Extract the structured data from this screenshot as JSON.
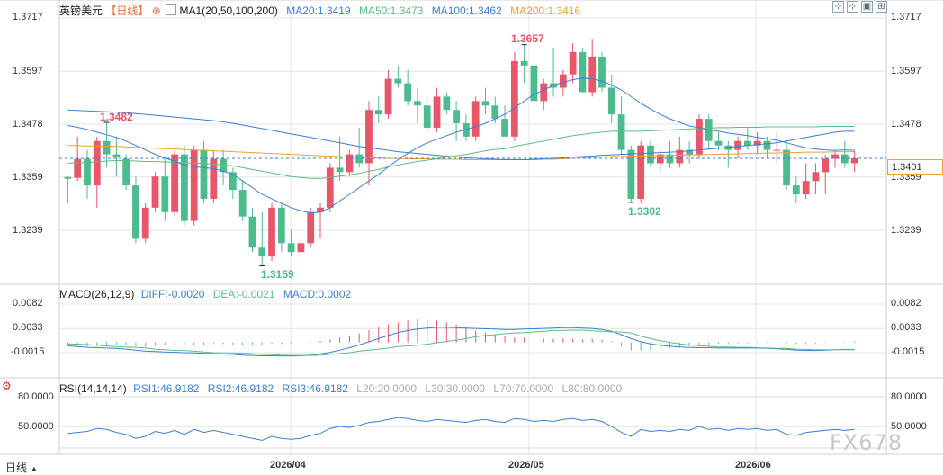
{
  "header": {
    "symbol": "英镑美元",
    "period": "【日线】",
    "ma_main": "MA1(20,50,100,200)",
    "ma20": "MA20:1.3419",
    "ma50": "MA50:1.3473",
    "ma100": "MA100:1.3462",
    "ma200": "MA200:1.3416"
  },
  "macd_header": {
    "title": "MACD(26,12,9)",
    "diff": "DIFF:-0.0020",
    "dea": "DEA:-0.0021",
    "macd": "MACD:0.0002"
  },
  "rsi_header": {
    "title": "RSI(14,14,14)",
    "rsi1": "RSI1:46.9182",
    "rsi2": "RSI2:46.9182",
    "rsi3": "RSI3:46.9182",
    "l20": "L20:20.0000",
    "l30": "L30:30.0000",
    "l70": "L70:70.0000",
    "l80": "L80:80.0000"
  },
  "footer": {
    "period_label": "日线"
  },
  "watermark": "FX678",
  "current_price_label": "1.3401",
  "annotations": {
    "high1": "1.3482",
    "high2": "1.3657",
    "low1": "1.3159",
    "low2": "1.3302"
  },
  "price_axis_left": [
    "1.3717",
    "1.3597",
    "1.3478",
    "1.3359",
    "1.3239"
  ],
  "price_axis_right": [
    "1.3717",
    "1.3597",
    "1.3478",
    "1.3359",
    "1.3239"
  ],
  "macd_axis": [
    "0.0082",
    "0.0033",
    "-0.0015"
  ],
  "rsi_axis": [
    "80.0000",
    "50.0000"
  ],
  "date_labels": [
    "2026/04",
    "2026/05",
    "2026/06"
  ],
  "colors": {
    "up": "#e8566a",
    "down": "#4cbc8e",
    "ma20": "#3a7fd5",
    "ma50": "#5bbf80",
    "ma100": "#3a7fd5",
    "ma200": "#f0a030",
    "grid": "#e4e4e4"
  },
  "chart_data": [
    {
      "type": "candlestick",
      "title": "英镑美元 日线",
      "ylim": [
        1.313,
        1.374
      ],
      "ticks": [
        1.3717,
        1.3597,
        1.3478,
        1.3359,
        1.3239
      ],
      "current_price": 1.3401,
      "candles": [
        [
          1.3359,
          1.3361,
          1.33,
          1.3355
        ],
        [
          1.3357,
          1.345,
          1.335,
          1.34
        ],
        [
          1.34,
          1.342,
          1.331,
          1.334
        ],
        [
          1.334,
          1.345,
          1.329,
          1.344
        ],
        [
          1.344,
          1.3482,
          1.338,
          1.341
        ],
        [
          1.341,
          1.345,
          1.336,
          1.3405
        ],
        [
          1.34,
          1.341,
          1.333,
          1.334
        ],
        [
          1.334,
          1.336,
          1.321,
          1.322
        ],
        [
          1.322,
          1.33,
          1.321,
          1.329
        ],
        [
          1.329,
          1.337,
          1.328,
          1.336
        ],
        [
          1.336,
          1.34,
          1.326,
          1.328
        ],
        [
          1.328,
          1.342,
          1.327,
          1.341
        ],
        [
          1.341,
          1.343,
          1.325,
          1.326
        ],
        [
          1.326,
          1.343,
          1.325,
          1.342
        ],
        [
          1.342,
          1.344,
          1.33,
          1.331
        ],
        [
          1.331,
          1.342,
          1.33,
          1.34
        ],
        [
          1.34,
          1.342,
          1.334,
          1.337
        ],
        [
          1.337,
          1.338,
          1.331,
          1.333
        ],
        [
          1.333,
          1.335,
          1.326,
          1.327
        ],
        [
          1.327,
          1.329,
          1.319,
          1.32
        ],
        [
          1.32,
          1.328,
          1.3159,
          1.318
        ],
        [
          1.318,
          1.33,
          1.317,
          1.329
        ],
        [
          1.329,
          1.33,
          1.319,
          1.321
        ],
        [
          1.321,
          1.324,
          1.318,
          1.319
        ],
        [
          1.319,
          1.322,
          1.317,
          1.321
        ],
        [
          1.321,
          1.329,
          1.32,
          1.328
        ],
        [
          1.328,
          1.33,
          1.322,
          1.329
        ],
        [
          1.329,
          1.339,
          1.328,
          1.338
        ],
        [
          1.338,
          1.345,
          1.335,
          1.337
        ],
        [
          1.337,
          1.342,
          1.336,
          1.341
        ],
        [
          1.341,
          1.347,
          1.338,
          1.339
        ],
        [
          1.339,
          1.353,
          1.334,
          1.351
        ],
        [
          1.351,
          1.354,
          1.348,
          1.35
        ],
        [
          1.35,
          1.36,
          1.349,
          1.358
        ],
        [
          1.358,
          1.361,
          1.356,
          1.357
        ],
        [
          1.357,
          1.36,
          1.352,
          1.353
        ],
        [
          1.353,
          1.356,
          1.348,
          1.352
        ],
        [
          1.352,
          1.354,
          1.346,
          1.347
        ],
        [
          1.347,
          1.356,
          1.346,
          1.354
        ],
        [
          1.354,
          1.355,
          1.35,
          1.351
        ],
        [
          1.351,
          1.353,
          1.344,
          1.348
        ],
        [
          1.348,
          1.35,
          1.344,
          1.345
        ],
        [
          1.345,
          1.354,
          1.344,
          1.353
        ],
        [
          1.353,
          1.356,
          1.35,
          1.352
        ],
        [
          1.352,
          1.354,
          1.348,
          1.349
        ],
        [
          1.349,
          1.352,
          1.345,
          1.345
        ],
        [
          1.345,
          1.364,
          1.344,
          1.362
        ],
        [
          1.362,
          1.3657,
          1.357,
          1.361
        ],
        [
          1.361,
          1.362,
          1.352,
          1.353
        ],
        [
          1.353,
          1.358,
          1.351,
          1.357
        ],
        [
          1.357,
          1.365,
          1.354,
          1.356
        ],
        [
          1.356,
          1.36,
          1.354,
          1.359
        ],
        [
          1.359,
          1.366,
          1.357,
          1.364
        ],
        [
          1.364,
          1.365,
          1.355,
          1.355
        ],
        [
          1.355,
          1.367,
          1.354,
          1.363
        ],
        [
          1.363,
          1.364,
          1.355,
          1.356
        ],
        [
          1.356,
          1.359,
          1.348,
          1.35
        ],
        [
          1.35,
          1.354,
          1.341,
          1.342
        ],
        [
          1.342,
          1.343,
          1.3302,
          1.331
        ],
        [
          1.331,
          1.344,
          1.33,
          1.343
        ],
        [
          1.343,
          1.344,
          1.338,
          1.339
        ],
        [
          1.339,
          1.342,
          1.337,
          1.341
        ],
        [
          1.341,
          1.344,
          1.338,
          1.339
        ],
        [
          1.339,
          1.345,
          1.338,
          1.342
        ],
        [
          1.342,
          1.344,
          1.339,
          1.341
        ],
        [
          1.341,
          1.35,
          1.34,
          1.349
        ],
        [
          1.349,
          1.35,
          1.342,
          1.344
        ],
        [
          1.344,
          1.346,
          1.342,
          1.343
        ],
        [
          1.343,
          1.344,
          1.338,
          1.342
        ],
        [
          1.342,
          1.345,
          1.34,
          1.344
        ],
        [
          1.344,
          1.347,
          1.342,
          1.343
        ],
        [
          1.343,
          1.346,
          1.341,
          1.344
        ],
        [
          1.344,
          1.345,
          1.34,
          1.342
        ],
        [
          1.342,
          1.346,
          1.339,
          1.342
        ],
        [
          1.342,
          1.344,
          1.333,
          1.334
        ],
        [
          1.334,
          1.336,
          1.33,
          1.332
        ],
        [
          1.332,
          1.339,
          1.331,
          1.335
        ],
        [
          1.335,
          1.339,
          1.332,
          1.337
        ],
        [
          1.337,
          1.341,
          1.332,
          1.34
        ],
        [
          1.34,
          1.342,
          1.338,
          1.341
        ],
        [
          1.341,
          1.344,
          1.338,
          1.339
        ],
        [
          1.339,
          1.342,
          1.337,
          1.3401
        ]
      ],
      "ma20": [
        1.3475,
        1.3471,
        1.3466,
        1.346,
        1.3454,
        1.3448,
        1.344,
        1.343,
        1.342,
        1.341,
        1.3402,
        1.3394,
        1.3386,
        1.3382,
        1.338,
        1.3378,
        1.3372,
        1.3365,
        1.335,
        1.3335,
        1.332,
        1.331,
        1.33,
        1.329,
        1.3283,
        1.3278,
        1.328,
        1.329,
        1.3305,
        1.332,
        1.3335,
        1.335,
        1.3365,
        1.3382,
        1.3398,
        1.3412,
        1.3425,
        1.3436,
        1.3444,
        1.3452,
        1.346,
        1.3466,
        1.3472,
        1.348,
        1.349,
        1.35,
        1.3515,
        1.353,
        1.3545,
        1.3555,
        1.3565,
        1.3572,
        1.3578,
        1.3582,
        1.358,
        1.3575,
        1.3566,
        1.3555,
        1.354,
        1.3525,
        1.3512,
        1.35,
        1.349,
        1.3482,
        1.3474,
        1.347,
        1.3465,
        1.3462,
        1.3458,
        1.3455,
        1.3452,
        1.3448,
        1.3445,
        1.3442,
        1.3436,
        1.343,
        1.3425,
        1.3422,
        1.342,
        1.3419,
        1.342,
        1.3419
      ],
      "ma50": [
        1.339,
        1.3391,
        1.3392,
        1.3393,
        1.3395,
        1.3396,
        1.3396,
        1.3395,
        1.3394,
        1.3394,
        1.3393,
        1.3392,
        1.3391,
        1.339,
        1.3389,
        1.3388,
        1.3386,
        1.3384,
        1.338,
        1.3376,
        1.3372,
        1.3368,
        1.3364,
        1.336,
        1.3358,
        1.3356,
        1.3356,
        1.3358,
        1.3361,
        1.3364,
        1.3367,
        1.3372,
        1.3376,
        1.3382,
        1.3386,
        1.339,
        1.3394,
        1.3397,
        1.34,
        1.3404,
        1.3407,
        1.341,
        1.3414,
        1.3418,
        1.3421,
        1.3423,
        1.3428,
        1.3432,
        1.3436,
        1.344,
        1.3444,
        1.3448,
        1.3452,
        1.3455,
        1.3458,
        1.346,
        1.3462,
        1.3462,
        1.3462,
        1.3462,
        1.3463,
        1.3464,
        1.3465,
        1.3466,
        1.3467,
        1.3468,
        1.3469,
        1.347,
        1.347,
        1.3471,
        1.3471,
        1.3471,
        1.3472,
        1.3472,
        1.3472,
        1.3472,
        1.3472,
        1.3472,
        1.3473,
        1.3473,
        1.3473,
        1.3473
      ],
      "ma100": [
        1.351,
        1.3509,
        1.3508,
        1.3507,
        1.3506,
        1.3505,
        1.3504,
        1.3502,
        1.35,
        1.3498,
        1.3496,
        1.3494,
        1.3492,
        1.349,
        1.3488,
        1.3486,
        1.3483,
        1.348,
        1.3476,
        1.3472,
        1.3468,
        1.3464,
        1.346,
        1.3456,
        1.3452,
        1.3448,
        1.3444,
        1.344,
        1.3436,
        1.3432,
        1.3428,
        1.3425,
        1.3422,
        1.3419,
        1.3416,
        1.3414,
        1.3412,
        1.341,
        1.3408,
        1.3406,
        1.3404,
        1.3402,
        1.3401,
        1.34,
        1.3399,
        1.3398,
        1.3398,
        1.3398,
        1.3399,
        1.34,
        1.3401,
        1.3402,
        1.3404,
        1.3405,
        1.3406,
        1.3408,
        1.3409,
        1.341,
        1.3411,
        1.3412,
        1.3413,
        1.3414,
        1.3415,
        1.3416,
        1.3418,
        1.342,
        1.3422,
        1.3424,
        1.3426,
        1.3428,
        1.343,
        1.3432,
        1.3434,
        1.3436,
        1.344,
        1.3444,
        1.3448,
        1.3452,
        1.3456,
        1.346,
        1.3462,
        1.3462
      ],
      "ma200": [
        1.343,
        1.343,
        1.3429,
        1.3429,
        1.3428,
        1.3428,
        1.3427,
        1.3426,
        1.3425,
        1.3424,
        1.3423,
        1.3422,
        1.3421,
        1.342,
        1.3419,
        1.3418,
        1.3417,
        1.3416,
        1.3415,
        1.3414,
        1.3413,
        1.3412,
        1.3411,
        1.341,
        1.3409,
        1.3408,
        1.3407,
        1.3406,
        1.3405,
        1.3404,
        1.3403,
        1.3402,
        1.3402,
        1.3401,
        1.3401,
        1.34,
        1.34,
        1.34,
        1.3399,
        1.3399,
        1.3399,
        1.3398,
        1.3398,
        1.3398,
        1.3398,
        1.3398,
        1.3398,
        1.3398,
        1.3398,
        1.3399,
        1.3399,
        1.34,
        1.3401,
        1.3402,
        1.3403,
        1.3404,
        1.3405,
        1.3405,
        1.3406,
        1.3406,
        1.3407,
        1.3407,
        1.3408,
        1.3408,
        1.3409,
        1.3409,
        1.341,
        1.341,
        1.3411,
        1.3411,
        1.3412,
        1.3412,
        1.3413,
        1.3413,
        1.3414,
        1.3414,
        1.3415,
        1.3415,
        1.3415,
        1.3416,
        1.3416,
        1.3416
      ]
    },
    {
      "type": "macd",
      "title": "MACD(26,12,9)",
      "ylim": [
        -0.005,
        0.0095
      ],
      "ticks": [
        0.0082,
        0.0033,
        -0.0015
      ],
      "hist": [
        -0.0006,
        -0.0007,
        -0.0008,
        -0.0007,
        -0.0006,
        -0.0005,
        -0.0006,
        -0.0008,
        -0.0009,
        -0.0007,
        -0.0006,
        -0.0005,
        -0.0006,
        -0.0005,
        -0.0004,
        -0.0003,
        -0.0003,
        -0.0004,
        -0.0005,
        -0.0005,
        -0.0004,
        -0.0003,
        -0.0003,
        -0.0002,
        -0.0001,
        0.0001,
        0.0003,
        0.0006,
        0.001,
        0.0014,
        0.0018,
        0.0024,
        0.003,
        0.0036,
        0.004,
        0.0044,
        0.0046,
        0.0046,
        0.0044,
        0.004,
        0.0036,
        0.003,
        0.0024,
        0.0019,
        0.0016,
        0.0012,
        0.001,
        0.001,
        0.0009,
        0.0008,
        0.0007,
        0.0008,
        0.0007,
        0.0006,
        0.0007,
        0.0005,
        0.0002,
        -0.0008,
        -0.0016,
        -0.0016,
        -0.0015,
        -0.0013,
        -0.0011,
        -0.0009,
        -0.0007,
        -0.0006,
        -0.0004,
        -0.0003,
        -0.0003,
        -0.0002,
        -0.0002,
        -0.0001,
        -0.0001,
        -0.0001,
        -0.0003,
        -0.0003,
        -0.0003,
        -0.0002,
        -0.0001,
        0.0,
        0.0001,
        0.0002
      ],
      "diff": [
        -0.001,
        -0.0012,
        -0.0014,
        -0.0015,
        -0.0016,
        -0.0017,
        -0.0019,
        -0.0022,
        -0.0025,
        -0.0026,
        -0.0027,
        -0.0028,
        -0.0029,
        -0.003,
        -0.0031,
        -0.0032,
        -0.0033,
        -0.0034,
        -0.0036,
        -0.0037,
        -0.0038,
        -0.0038,
        -0.0039,
        -0.0039,
        -0.0038,
        -0.0036,
        -0.0033,
        -0.0028,
        -0.0022,
        -0.0015,
        -0.0007,
        0.0002,
        0.0011,
        0.002,
        0.0028,
        0.0034,
        0.0038,
        0.0041,
        0.0043,
        0.0043,
        0.0042,
        0.0041,
        0.004,
        0.0039,
        0.0038,
        0.0037,
        0.0037,
        0.0038,
        0.0039,
        0.004,
        0.0041,
        0.0042,
        0.0042,
        0.0041,
        0.004,
        0.0037,
        0.0032,
        0.0022,
        0.0011,
        0.0002,
        -0.0004,
        -0.0008,
        -0.0011,
        -0.0013,
        -0.0014,
        -0.0015,
        -0.0015,
        -0.0016,
        -0.0016,
        -0.0016,
        -0.0016,
        -0.0016,
        -0.0017,
        -0.0018,
        -0.002,
        -0.0022,
        -0.0023,
        -0.0023,
        -0.0022,
        -0.0021,
        -0.002,
        -0.002
      ],
      "dea": [
        -0.0004,
        -0.0005,
        -0.0006,
        -0.0008,
        -0.001,
        -0.0012,
        -0.0013,
        -0.0014,
        -0.0016,
        -0.0019,
        -0.0021,
        -0.0023,
        -0.0023,
        -0.0025,
        -0.0027,
        -0.0029,
        -0.003,
        -0.003,
        -0.0031,
        -0.0032,
        -0.0034,
        -0.0035,
        -0.0036,
        -0.0037,
        -0.0037,
        -0.0037,
        -0.0036,
        -0.0034,
        -0.0032,
        -0.0029,
        -0.0025,
        -0.0022,
        -0.0019,
        -0.0016,
        -0.0012,
        -0.001,
        -0.0008,
        -0.0005,
        -0.0001,
        0.0003,
        0.0006,
        0.0011,
        0.0016,
        0.002,
        0.0022,
        0.0025,
        0.0027,
        0.0028,
        0.003,
        0.0032,
        0.0034,
        0.0034,
        0.0035,
        0.0035,
        0.0033,
        0.0032,
        0.003,
        0.003,
        0.0027,
        0.0018,
        0.0011,
        0.0005,
        0.0,
        -0.0004,
        -0.0007,
        -0.0009,
        -0.0011,
        -0.0013,
        -0.0013,
        -0.0014,
        -0.0014,
        -0.0015,
        -0.0016,
        -0.0017,
        -0.0017,
        -0.0019,
        -0.002,
        -0.0021,
        -0.0021,
        -0.0021,
        -0.0021,
        -0.0021
      ]
    },
    {
      "type": "rsi",
      "title": "RSI(14,14,14)",
      "ylim": [
        32,
        88
      ],
      "ticks": [
        80,
        50
      ],
      "levels": [
        20,
        30,
        70,
        80
      ],
      "rsi": [
        43,
        44,
        45,
        48,
        47,
        44,
        42,
        38,
        40,
        45,
        43,
        46,
        42,
        47,
        44,
        46,
        44,
        42,
        40,
        38,
        36,
        40,
        38,
        37,
        38,
        41,
        43,
        48,
        50,
        49,
        51,
        54,
        55,
        57,
        59,
        58,
        56,
        55,
        57,
        56,
        55,
        54,
        56,
        57,
        55,
        54,
        58,
        57,
        55,
        56,
        55,
        57,
        58,
        56,
        57,
        55,
        50,
        44,
        40,
        47,
        45,
        46,
        45,
        47,
        46,
        50,
        47,
        48,
        46,
        48,
        47,
        48,
        46,
        47,
        42,
        41,
        44,
        45,
        46,
        47,
        46,
        47
      ]
    }
  ]
}
